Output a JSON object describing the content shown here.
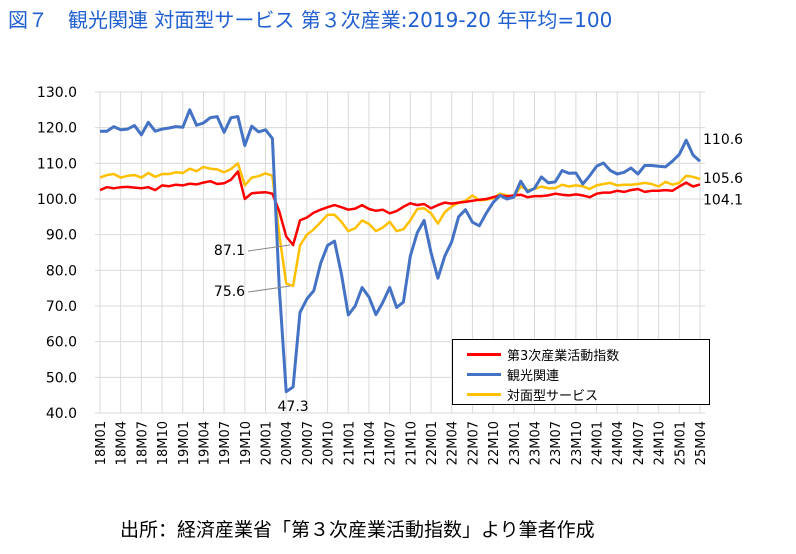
{
  "title": "図７　観光関連 対面型サービス 第３次産業:2019-20 年平均=100",
  "source": "出所：経済産業省「第３次産業活動指数」より筆者作成",
  "chart_data": {
    "type": "line",
    "title": "図７　観光関連 対面型サービス 第３次産業:2019-20 年平均=100",
    "xlabel": "",
    "ylabel": "",
    "ylim": [
      40,
      130
    ],
    "yticks": [
      "40.0",
      "50.0",
      "60.0",
      "70.0",
      "80.0",
      "90.0",
      "100.0",
      "110.0",
      "120.0",
      "130.0"
    ],
    "grid": true,
    "legend_position": "bottom-right",
    "x_tick_labels": [
      "18M01",
      "18M04",
      "18M07",
      "18M10",
      "19M01",
      "19M04",
      "19M07",
      "19M10",
      "20M01",
      "20M04",
      "20M07",
      "20M10",
      "21M01",
      "21M04",
      "21M07",
      "21M10",
      "22M01",
      "22M04",
      "22M07",
      "22M10",
      "23M01",
      "23M04",
      "23M07",
      "23M10",
      "24M01",
      "24M04",
      "24M07",
      "24M10",
      "25M01",
      "25M04"
    ],
    "x": [
      "18M01",
      "18M02",
      "18M03",
      "18M04",
      "18M05",
      "18M06",
      "18M07",
      "18M08",
      "18M09",
      "18M10",
      "18M11",
      "18M12",
      "19M01",
      "19M02",
      "19M03",
      "19M04",
      "19M05",
      "19M06",
      "19M07",
      "19M08",
      "19M09",
      "19M10",
      "19M11",
      "19M12",
      "20M01",
      "20M02",
      "20M03",
      "20M04",
      "20M05",
      "20M06",
      "20M07",
      "20M08",
      "20M09",
      "20M10",
      "20M11",
      "20M12",
      "21M01",
      "21M02",
      "21M03",
      "21M04",
      "21M05",
      "21M06",
      "21M07",
      "21M08",
      "21M09",
      "21M10",
      "21M11",
      "21M12",
      "22M01",
      "22M02",
      "22M03",
      "22M04",
      "22M05",
      "22M06",
      "22M07",
      "22M08",
      "22M09",
      "22M10",
      "22M11",
      "22M12",
      "23M01",
      "23M02",
      "23M03",
      "23M04",
      "23M05",
      "23M06",
      "23M07",
      "23M08",
      "23M09",
      "23M10",
      "23M11",
      "23M12",
      "24M01",
      "24M02",
      "24M03",
      "24M04",
      "24M05",
      "24M06",
      "24M07",
      "24M08",
      "24M09",
      "24M10",
      "24M11",
      "24M12",
      "25M01",
      "25M02",
      "25M03",
      "25M04"
    ],
    "series": [
      {
        "name": "第3次産業活動指数",
        "color": "#ff0000",
        "values": [
          102.5,
          103.3,
          103.0,
          103.3,
          103.4,
          103.2,
          103.0,
          103.3,
          102.5,
          103.8,
          103.6,
          104.0,
          103.8,
          104.3,
          104.1,
          104.6,
          105.0,
          104.2,
          104.4,
          105.4,
          107.7,
          100.0,
          101.6,
          101.8,
          101.9,
          101.5,
          96.5,
          89.5,
          87.1,
          94.0,
          94.8,
          96.2,
          97.0,
          97.7,
          98.3,
          97.7,
          97.0,
          97.3,
          98.3,
          97.2,
          96.7,
          97.0,
          96.0,
          96.6,
          97.8,
          98.8,
          98.3,
          98.6,
          97.4,
          98.3,
          99.0,
          98.7,
          99.0,
          99.2,
          99.5,
          99.8,
          100.0,
          100.5,
          101.0,
          100.7,
          101.0,
          101.2,
          100.5,
          100.8,
          100.8,
          101.0,
          101.5,
          101.2,
          101.0,
          101.3,
          101.0,
          100.5,
          101.5,
          101.8,
          101.8,
          102.3,
          102.0,
          102.5,
          102.8,
          102.0,
          102.3,
          102.3,
          102.5,
          102.3,
          103.5,
          104.6,
          103.5,
          104.1
        ]
      },
      {
        "name": "観光関連",
        "color": "#4472c4",
        "values": [
          119.0,
          119.0,
          120.3,
          119.4,
          119.6,
          120.6,
          118.0,
          121.5,
          119.0,
          119.6,
          119.9,
          120.3,
          120.1,
          125.0,
          120.7,
          121.3,
          122.8,
          123.1,
          118.7,
          122.8,
          123.1,
          115.0,
          120.4,
          118.8,
          119.4,
          117.0,
          75.0,
          46.0,
          47.3,
          68.2,
          72.0,
          74.3,
          82.0,
          87.0,
          88.2,
          79.0,
          67.5,
          70.0,
          75.2,
          72.5,
          67.6,
          71.0,
          75.2,
          69.6,
          71.1,
          84.0,
          90.5,
          94.0,
          85.0,
          77.8,
          84.0,
          88.0,
          95.0,
          97.0,
          93.5,
          92.5,
          96.0,
          99.0,
          101.0,
          100.0,
          100.5,
          105.0,
          102.0,
          103.0,
          106.2,
          104.5,
          104.8,
          108.0,
          107.2,
          107.3,
          104.2,
          106.5,
          109.2,
          110.1,
          108.0,
          107.0,
          107.5,
          108.7,
          107.0,
          109.4,
          109.4,
          109.2,
          109.0,
          110.6,
          112.5,
          116.5,
          112.3,
          110.6
        ]
      },
      {
        "name": "対面型サービス",
        "color": "#ffc000",
        "values": [
          106.0,
          106.7,
          107.0,
          106.0,
          106.5,
          106.7,
          106.0,
          107.3,
          106.2,
          107.0,
          107.0,
          107.5,
          107.3,
          108.5,
          107.8,
          109.0,
          108.5,
          108.3,
          107.5,
          108.4,
          110.0,
          103.8,
          106.0,
          106.4,
          107.2,
          106.5,
          90.0,
          76.3,
          75.6,
          87.0,
          90.0,
          91.5,
          93.5,
          95.6,
          95.6,
          93.6,
          91.0,
          91.8,
          94.0,
          93.0,
          91.0,
          92.0,
          93.6,
          91.0,
          91.5,
          94.0,
          97.2,
          97.4,
          96.0,
          93.1,
          96.3,
          97.9,
          99.0,
          99.5,
          101.0,
          99.6,
          99.8,
          100.2,
          101.5,
          101.0,
          100.5,
          103.5,
          102.5,
          102.8,
          103.5,
          103.0,
          103.0,
          104.0,
          103.5,
          103.8,
          103.6,
          102.8,
          103.8,
          104.2,
          104.5,
          103.8,
          104.0,
          104.0,
          104.2,
          104.5,
          104.2,
          103.5,
          104.8,
          104.0,
          104.5,
          106.5,
          106.2,
          105.6
        ]
      }
    ],
    "annotations": [
      "110.6",
      "105.6",
      "104.1",
      "87.1",
      "75.6",
      "47.3"
    ]
  }
}
